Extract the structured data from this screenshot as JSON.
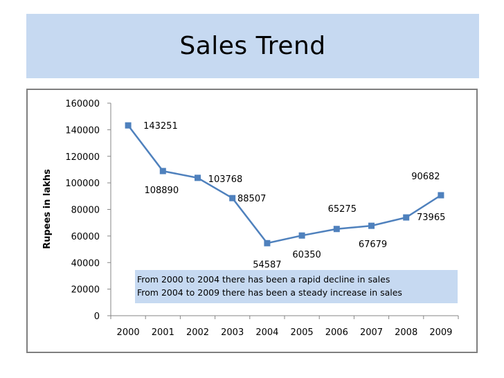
{
  "slide": {
    "title": "Sales Trend"
  },
  "colors": {
    "title_band": "#c6d9f1",
    "series_line": "#4f81bd",
    "note_band": "#c6d9f1"
  },
  "chart_data": {
    "type": "line",
    "title": "",
    "xlabel": "",
    "ylabel": "Rupees in lakhs",
    "categories": [
      "2000",
      "2001",
      "2002",
      "2003",
      "2004",
      "2005",
      "2006",
      "2007",
      "2008",
      "2009"
    ],
    "series": [
      {
        "values": [
          143251,
          108890,
          103768,
          88507,
          54587,
          60350,
          65275,
          67679,
          73965,
          90682
        ],
        "marker": "square",
        "data_labels": true
      }
    ],
    "ylim": [
      0,
      160000
    ],
    "yticks": [
      0,
      20000,
      40000,
      60000,
      80000,
      100000,
      120000,
      140000,
      160000
    ],
    "grid": false,
    "legend": "none",
    "annotations": [
      "From 2000 to 2004 there has been a rapid decline in sales",
      "From 2004 to 2009 there has been a steady increase in sales"
    ]
  }
}
